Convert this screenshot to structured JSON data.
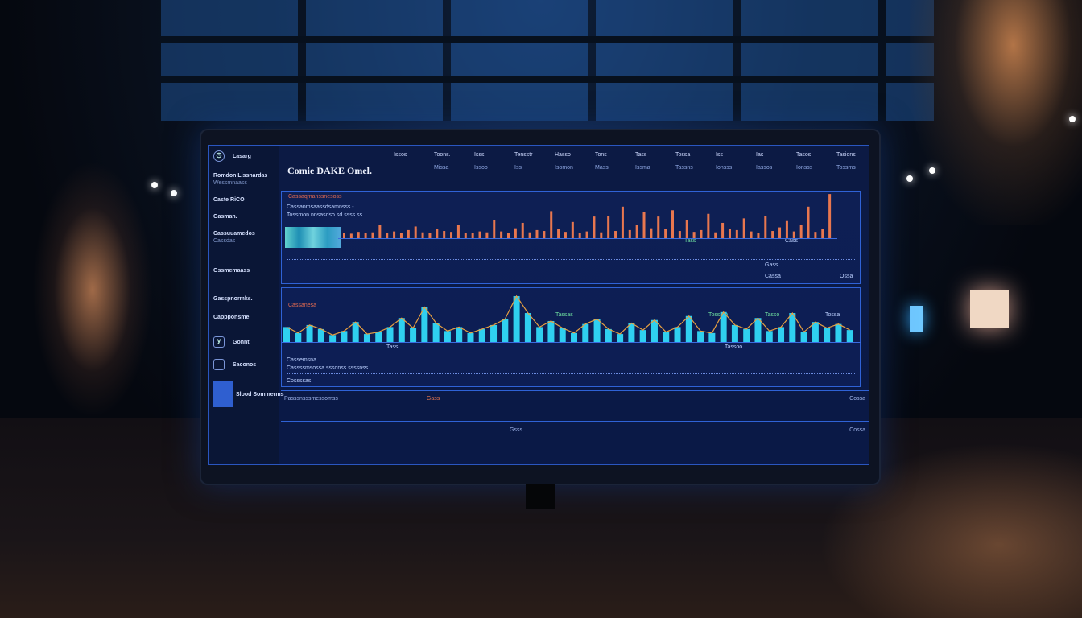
{
  "app": {
    "title": "Comie DAKE Omel."
  },
  "sidebar": {
    "items": [
      {
        "label": "Lasarg",
        "sub": ""
      },
      {
        "label": "Romdon Lissnardas",
        "sub": "Wessmnaass"
      },
      {
        "label": "Caste RiCO",
        "sub": ""
      },
      {
        "label": "Gasman.",
        "sub": ""
      },
      {
        "label": "Cassuuamedos",
        "sub": "Cassdas"
      },
      {
        "label": "Gssmemaass",
        "sub": ""
      },
      {
        "label": "Gasspnormks.",
        "sub": ""
      },
      {
        "label": "Cappponsme",
        "sub": ""
      }
    ],
    "footer": [
      {
        "icon": "y",
        "label": "Gonnt"
      },
      {
        "icon": "",
        "label": "Saconos"
      },
      {
        "icon": "",
        "label": "Slood Sommerms"
      }
    ]
  },
  "header": {
    "items": [
      {
        "label": "Issos",
        "sub": ""
      },
      {
        "label": "Toons.",
        "sub": "Missa"
      },
      {
        "label": "Isss",
        "sub": "Issoo"
      },
      {
        "label": "Tensstr",
        "sub": "Iss"
      },
      {
        "label": "Hasso",
        "sub": "Isomon"
      },
      {
        "label": "Tons",
        "sub": "Mass"
      },
      {
        "label": "Tass",
        "sub": "Issma"
      },
      {
        "label": "Tossa",
        "sub": "Tassns"
      },
      {
        "label": "Iss",
        "sub": "Ionsss"
      },
      {
        "label": "Ias",
        "sub": "Iassos"
      },
      {
        "label": "Tasos",
        "sub": "Ionsss"
      },
      {
        "label": "Tasions",
        "sub": "Tossms"
      }
    ]
  },
  "panel1": {
    "title": "Cassaqmanssnesoss",
    "lines": [
      "Cassanmsaassdsamnsss -",
      "Tossmon nnsasdso sd ssss ss"
    ],
    "labels": [
      "Tass",
      "Cass",
      "Gass",
      "Cassa",
      "Ossa"
    ],
    "bar_color": "#e8774f"
  },
  "panel2": {
    "title": "Cassanesa",
    "lines": [
      "Cassemsna",
      "Cassssmsossa sssonss ssssnss"
    ],
    "footer": "Cossssas",
    "labels": [
      "Tassas",
      "Tossmo",
      "Tasso",
      "Tossa",
      "Tass",
      "Tassoo"
    ],
    "bar_color": "#2fd0f0",
    "line_color": "#e8a040"
  },
  "bottom": {
    "rows": [
      "Passsnsssmessomss",
      "Gass",
      "Cossa",
      "Gsss",
      "Cossa"
    ]
  },
  "chart_data": [
    {
      "type": "bar",
      "title": "Cassaqmanssnesoss",
      "values": [
        12,
        10,
        14,
        11,
        13,
        30,
        12,
        15,
        11,
        18,
        26,
        13,
        12,
        20,
        16,
        14,
        30,
        12,
        11,
        15,
        13,
        40,
        15,
        11,
        22,
        34,
        13,
        18,
        16,
        60,
        20,
        14,
        36,
        12,
        15,
        48,
        13,
        50,
        16,
        70,
        18,
        30,
        58,
        22,
        48,
        20,
        62,
        16,
        40,
        14,
        18,
        54,
        13,
        34,
        20,
        18,
        44,
        15,
        12,
        50,
        16,
        24,
        38,
        15,
        30,
        70,
        14,
        20,
        98
      ],
      "color": "#e8774f"
    },
    {
      "type": "bar",
      "title": "Cassanesa",
      "values": [
        30,
        18,
        34,
        26,
        14,
        22,
        40,
        16,
        20,
        30,
        48,
        28,
        70,
        38,
        22,
        30,
        18,
        26,
        34,
        46,
        92,
        58,
        30,
        42,
        28,
        18,
        36,
        46,
        26,
        16,
        38,
        24,
        44,
        20,
        30,
        52,
        22,
        18,
        60,
        34,
        26,
        48,
        22,
        30,
        58,
        20,
        40,
        28,
        36,
        24
      ],
      "color": "#2fd0f0"
    }
  ]
}
